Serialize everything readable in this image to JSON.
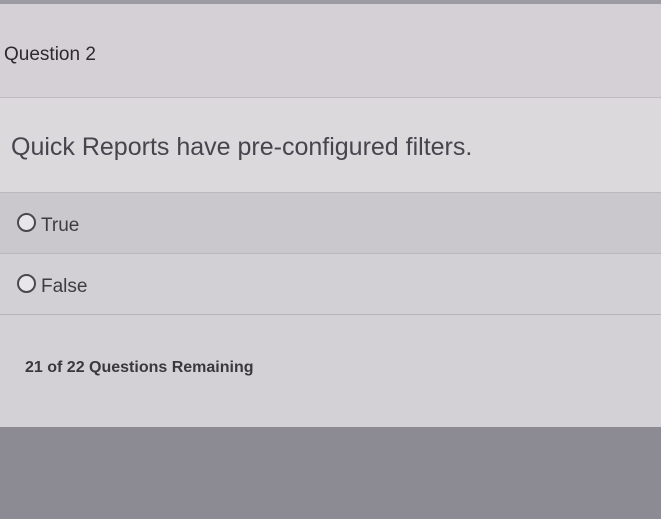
{
  "question": {
    "number_label": "Question 2",
    "text": "Quick Reports have pre-configured filters.",
    "options": [
      {
        "label": "True",
        "selected": false
      },
      {
        "label": "False",
        "selected": false
      }
    ]
  },
  "status": {
    "remaining": "21 of 22 Questions Remaining"
  }
}
